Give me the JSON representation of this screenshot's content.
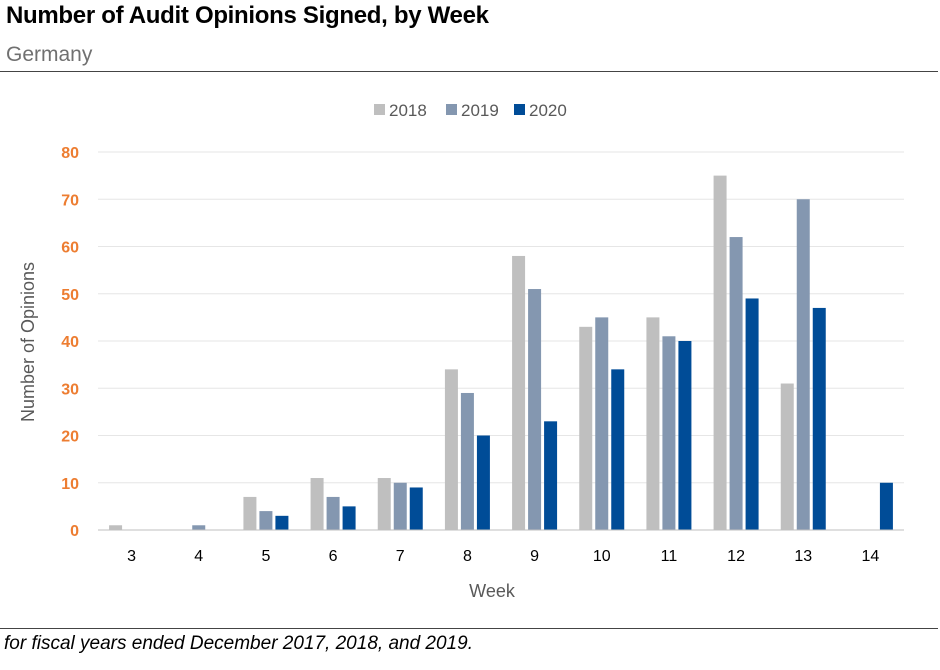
{
  "header": {
    "title": "Number of Audit Opinions Signed, by Week",
    "subtitle": "Germany"
  },
  "footnote": "for fiscal years ended December 2017, 2018, and 2019.",
  "colors": {
    "s2018": "#bfbfbf",
    "s2019": "#8497b0",
    "s2020": "#004c97",
    "ytick": "#ed7d31",
    "grid": "#e6e6e6",
    "axis": "#bfbfbf",
    "label": "#595959"
  },
  "chart_data": {
    "type": "bar",
    "xlabel": "Week",
    "ylabel": "Number of Opinions",
    "ylim": [
      0,
      80
    ],
    "yticks": [
      0,
      10,
      20,
      30,
      40,
      50,
      60,
      70,
      80
    ],
    "grid": true,
    "legend_position": "top-center",
    "categories": [
      "3",
      "4",
      "5",
      "6",
      "7",
      "8",
      "9",
      "10",
      "11",
      "12",
      "13",
      "14"
    ],
    "series": [
      {
        "name": "2018",
        "values": [
          1,
          0,
          7,
          11,
          11,
          34,
          58,
          43,
          45,
          75,
          31,
          0
        ]
      },
      {
        "name": "2019",
        "values": [
          0,
          1,
          4,
          7,
          10,
          29,
          51,
          45,
          41,
          62,
          70,
          0
        ]
      },
      {
        "name": "2020",
        "values": [
          0,
          0,
          3,
          5,
          9,
          20,
          23,
          34,
          40,
          49,
          47,
          10
        ]
      }
    ]
  }
}
